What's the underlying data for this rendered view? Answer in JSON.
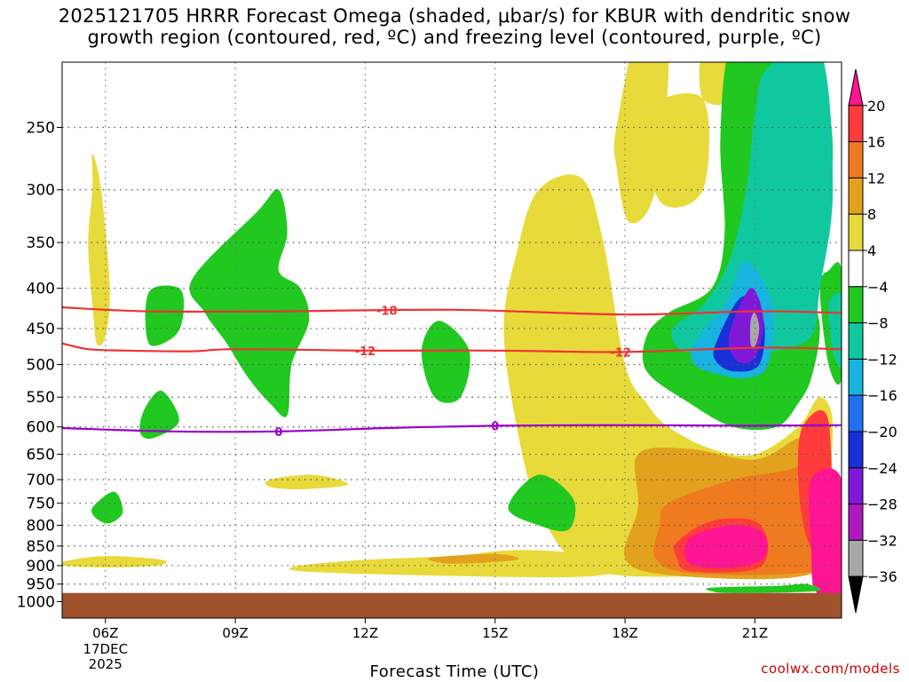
{
  "title": {
    "line1": "2025121705 HRRR Forecast Omega (shaded, μbar/s) for KBUR with dendritic snow",
    "line2": "growth region (contoured, red, ºC) and freezing level (contoured, purple, ºC)"
  },
  "credit": "coolwx.com/models",
  "chart_data": {
    "type": "heatmap",
    "xlabel": "Forecast Time (UTC)",
    "x_ticks": [
      {
        "hour": 6,
        "label": "06Z",
        "sub": [
          "17DEC",
          "2025"
        ]
      },
      {
        "hour": 9,
        "label": "09Z"
      },
      {
        "hour": 12,
        "label": "12Z"
      },
      {
        "hour": 15,
        "label": "15Z"
      },
      {
        "hour": 18,
        "label": "18Z"
      },
      {
        "hour": 21,
        "label": "21Z"
      }
    ],
    "xlim_hours": [
      5,
      23
    ],
    "y_ticks": [
      250,
      300,
      350,
      400,
      450,
      500,
      550,
      600,
      650,
      700,
      750,
      800,
      850,
      900,
      950,
      1000
    ],
    "ylim_hpa": [
      200,
      1000
    ],
    "y_scale": "log-pressure",
    "grid": true,
    "colorbar": {
      "labels": [
        "20",
        "16",
        "12",
        "8",
        "4",
        "−4",
        "−8",
        "−12",
        "−16",
        "−20",
        "−24",
        "−28",
        "−32",
        "−36"
      ],
      "colors": [
        "#ff1493",
        "#ff3b3b",
        "#f07a20",
        "#e3a21e",
        "#e8da3a",
        "#ffffff",
        "#20c820",
        "#10c8a0",
        "#18b4e0",
        "#2070f0",
        "#1830d8",
        "#8018d8",
        "#b018c0",
        "#a8a8a8",
        "#000000"
      ]
    },
    "contours": [
      {
        "label": "-18",
        "color": "#ee3333",
        "points": [
          [
            5,
            423
          ],
          [
            7,
            428
          ],
          [
            10,
            428
          ],
          [
            14,
            426
          ],
          [
            18,
            432
          ],
          [
            21,
            428
          ],
          [
            23,
            430
          ]
        ],
        "label_positions": [
          [
            12.5,
            427
          ]
        ]
      },
      {
        "label": "-12",
        "color": "#ee3333",
        "points": [
          [
            5,
            470
          ],
          [
            5.6,
            478
          ],
          [
            6.5,
            480
          ],
          [
            8,
            481
          ],
          [
            9,
            478
          ],
          [
            12,
            480
          ],
          [
            15,
            480
          ],
          [
            18,
            482
          ],
          [
            21,
            476
          ],
          [
            23,
            478
          ]
        ],
        "label_positions": [
          [
            12,
            480
          ],
          [
            17.9,
            482
          ]
        ]
      },
      {
        "label": "0",
        "color": "#9900cc",
        "points": [
          [
            5,
            602
          ],
          [
            7.5,
            608
          ],
          [
            10,
            608
          ],
          [
            12.5,
            602
          ],
          [
            15,
            598
          ],
          [
            18,
            597
          ],
          [
            21,
            598
          ],
          [
            23,
            597
          ]
        ],
        "label_positions": [
          [
            10,
            608
          ],
          [
            15,
            598
          ]
        ]
      }
    ],
    "ground_level_hpa": 975,
    "ground_color": "#a0522d",
    "shaded_regions": [
      {
        "value": 6,
        "color": "#e8da3a",
        "points": [
          [
            5.7,
            270
          ],
          [
            5.9,
            300
          ],
          [
            6.1,
            400
          ],
          [
            6.0,
            460
          ],
          [
            5.8,
            470
          ],
          [
            5.7,
            420
          ],
          [
            5.6,
            350
          ],
          [
            5.7,
            300
          ]
        ]
      },
      {
        "value": 6,
        "color": "#e8da3a",
        "points": [
          [
            5,
            890
          ],
          [
            6,
            875
          ],
          [
            7.3,
            885
          ],
          [
            7.2,
            900
          ],
          [
            6,
            905
          ],
          [
            5,
            900
          ]
        ]
      },
      {
        "value": 6,
        "color": "#e8da3a",
        "points": [
          [
            9.8,
            700
          ],
          [
            10.8,
            690
          ],
          [
            11.6,
            710
          ],
          [
            10.5,
            720
          ],
          [
            9.8,
            715
          ]
        ]
      },
      {
        "value": 6,
        "color": "#e8da3a",
        "points": [
          [
            10.5,
            900
          ],
          [
            12,
            885
          ],
          [
            14,
            875
          ],
          [
            15.5,
            860
          ],
          [
            17,
            870
          ],
          [
            18,
            900
          ],
          [
            17,
            930
          ],
          [
            13,
            925
          ],
          [
            10.5,
            915
          ]
        ]
      },
      {
        "value": 6,
        "color": "#e8da3a",
        "points": [
          [
            15.5,
            360
          ],
          [
            16,
            300
          ],
          [
            17,
            290
          ],
          [
            17.5,
            350
          ],
          [
            18,
            500
          ],
          [
            18.5,
            560
          ],
          [
            19,
            600
          ],
          [
            20,
            640
          ],
          [
            21,
            650
          ],
          [
            22,
            600
          ],
          [
            22.5,
            550
          ],
          [
            22.8,
            600
          ],
          [
            22.5,
            800
          ],
          [
            21.5,
            900
          ],
          [
            19,
            930
          ],
          [
            17,
            900
          ],
          [
            16,
            760
          ],
          [
            15.5,
            600
          ],
          [
            15.2,
            450
          ]
        ]
      },
      {
        "value": 6,
        "color": "#e8da3a",
        "points": [
          [
            17.8,
            250
          ],
          [
            18.4,
            180
          ],
          [
            19,
            200
          ],
          [
            18.7,
            300
          ],
          [
            18.1,
            330
          ],
          [
            17.8,
            280
          ]
        ]
      },
      {
        "value": 6,
        "color": "#e8da3a",
        "points": [
          [
            18.5,
            240
          ],
          [
            19.8,
            230
          ],
          [
            19.8,
            300
          ],
          [
            18.8,
            310
          ]
        ]
      },
      {
        "value": 6,
        "color": "#e8da3a",
        "points": [
          [
            19.8,
            200
          ],
          [
            20.5,
            200
          ],
          [
            20.5,
            230
          ],
          [
            19.8,
            230
          ]
        ]
      },
      {
        "value": 10,
        "color": "#e3a21e",
        "points": [
          [
            13.5,
            880
          ],
          [
            15,
            870
          ],
          [
            15.5,
            885
          ],
          [
            14,
            895
          ]
        ]
      },
      {
        "value": 10,
        "color": "#e3a21e",
        "points": [
          [
            18.3,
            650
          ],
          [
            19.5,
            640
          ],
          [
            21,
            660
          ],
          [
            22,
            620
          ],
          [
            22.7,
            610
          ],
          [
            22.7,
            850
          ],
          [
            22,
            930
          ],
          [
            19,
            925
          ],
          [
            18,
            880
          ],
          [
            18.3,
            760
          ]
        ]
      },
      {
        "value": 14,
        "color": "#f07a20",
        "points": [
          [
            19,
            750
          ],
          [
            20.5,
            700
          ],
          [
            21.8,
            680
          ],
          [
            22.7,
            650
          ],
          [
            22.7,
            880
          ],
          [
            22,
            920
          ],
          [
            19.5,
            920
          ],
          [
            18.7,
            880
          ],
          [
            18.8,
            800
          ]
        ]
      },
      {
        "value": 18,
        "color": "#ff3b3b",
        "points": [
          [
            22.1,
            600
          ],
          [
            22.7,
            590
          ],
          [
            22.7,
            900
          ],
          [
            22.2,
            830
          ],
          [
            22.0,
            700
          ]
        ]
      },
      {
        "value": 18,
        "color": "#ff3b3b",
        "points": [
          [
            19.2,
            840
          ],
          [
            20,
            790
          ],
          [
            21,
            790
          ],
          [
            21.3,
            850
          ],
          [
            21,
            910
          ],
          [
            19.5,
            915
          ],
          [
            19.2,
            880
          ]
        ]
      },
      {
        "value": 22,
        "color": "#ff1493",
        "points": [
          [
            19.5,
            830
          ],
          [
            20.5,
            800
          ],
          [
            21.2,
            820
          ],
          [
            21.2,
            880
          ],
          [
            20.5,
            905
          ],
          [
            19.5,
            895
          ]
        ]
      },
      {
        "value": 22,
        "color": "#ff1493",
        "points": [
          [
            22.3,
            700
          ],
          [
            23,
            700
          ],
          [
            23,
            970
          ],
          [
            22.4,
            970
          ],
          [
            22.3,
            850
          ]
        ]
      },
      {
        "value": -6,
        "color": "#20c820",
        "points": [
          [
            8,
            390
          ],
          [
            9.5,
            320
          ],
          [
            10,
            300
          ],
          [
            10.2,
            340
          ],
          [
            10,
            380
          ],
          [
            10.5,
            400
          ],
          [
            10.7,
            440
          ],
          [
            10.3,
            500
          ],
          [
            10.2,
            580
          ],
          [
            9.8,
            560
          ],
          [
            9.3,
            520
          ],
          [
            8.8,
            470
          ],
          [
            8.3,
            430
          ]
        ]
      },
      {
        "value": -6,
        "color": "#20c820",
        "points": [
          [
            7,
            405
          ],
          [
            7.7,
            400
          ],
          [
            7.8,
            430
          ],
          [
            7.6,
            460
          ],
          [
            7,
            470
          ]
        ]
      },
      {
        "value": -6,
        "color": "#20c820",
        "points": [
          [
            6.9,
            570
          ],
          [
            7.3,
            540
          ],
          [
            7.7,
            590
          ],
          [
            7.1,
            620
          ],
          [
            6.8,
            610
          ]
        ]
      },
      {
        "value": -6,
        "color": "#20c820",
        "points": [
          [
            5.7,
            760
          ],
          [
            6.2,
            725
          ],
          [
            6.4,
            770
          ],
          [
            6.1,
            795
          ],
          [
            5.8,
            785
          ]
        ]
      },
      {
        "value": -6,
        "color": "#20c820",
        "points": [
          [
            13.3,
            480
          ],
          [
            13.7,
            440
          ],
          [
            14.4,
            480
          ],
          [
            14.2,
            550
          ],
          [
            13.6,
            550
          ]
        ]
      },
      {
        "value": -6,
        "color": "#20c820",
        "points": [
          [
            15.3,
            760
          ],
          [
            16,
            690
          ],
          [
            16.8,
            740
          ],
          [
            16.7,
            810
          ],
          [
            16,
            800
          ]
        ]
      },
      {
        "value": -6,
        "color": "#20c820",
        "points": [
          [
            20.4,
            200
          ],
          [
            21,
            205
          ],
          [
            22.3,
            200
          ],
          [
            22.8,
            270
          ],
          [
            22.3,
            380
          ],
          [
            22.5,
            450
          ],
          [
            22.3,
            520
          ],
          [
            22,
            560
          ],
          [
            21.5,
            600
          ],
          [
            20.5,
            600
          ],
          [
            19.5,
            560
          ],
          [
            18.5,
            510
          ],
          [
            18.5,
            460
          ],
          [
            19,
            430
          ],
          [
            20,
            400
          ],
          [
            20.3,
            340
          ],
          [
            20.2,
            260
          ]
        ]
      },
      {
        "value": -6,
        "color": "#20c820",
        "points": [
          [
            22.5,
            400
          ],
          [
            22.7,
            380
          ],
          [
            23,
            380
          ],
          [
            23,
            520
          ],
          [
            22.7,
            500
          ]
        ]
      },
      {
        "value": -6,
        "color": "#20c820",
        "points": [
          [
            20,
            960
          ],
          [
            21.5,
            955
          ],
          [
            22.2,
            950
          ],
          [
            22.4,
            970
          ],
          [
            20.5,
            975
          ],
          [
            20,
            970
          ]
        ]
      },
      {
        "value": -10,
        "color": "#10c8a0",
        "points": [
          [
            21.3,
            210
          ],
          [
            22.5,
            200
          ],
          [
            22.8,
            300
          ],
          [
            22.5,
            400
          ],
          [
            22.3,
            460
          ],
          [
            21.5,
            480
          ],
          [
            20.8,
            480
          ],
          [
            20,
            480
          ],
          [
            19.3,
            480
          ],
          [
            19.1,
            450
          ],
          [
            19.8,
            420
          ],
          [
            20.4,
            370
          ],
          [
            20.8,
            300
          ],
          [
            21,
            240
          ]
        ]
      },
      {
        "value": -10,
        "color": "#10c8a0",
        "points": [
          [
            22.7,
            420
          ],
          [
            23,
            410
          ],
          [
            23,
            500
          ],
          [
            22.8,
            480
          ]
        ]
      },
      {
        "value": -14,
        "color": "#18b4e0",
        "points": [
          [
            19.6,
            470
          ],
          [
            20.3,
            420
          ],
          [
            20.8,
            370
          ],
          [
            21.4,
            420
          ],
          [
            21.3,
            500
          ],
          [
            20.8,
            520
          ],
          [
            20.2,
            515
          ],
          [
            19.6,
            500
          ]
        ]
      },
      {
        "value": -22,
        "color": "#1830d8",
        "points": [
          [
            20.1,
            470
          ],
          [
            20.7,
            410
          ],
          [
            21.2,
            440
          ],
          [
            21.1,
            500
          ],
          [
            20.5,
            510
          ],
          [
            20.1,
            495
          ]
        ]
      },
      {
        "value": -26,
        "color": "#8018d8",
        "points": [
          [
            20.4,
            460
          ],
          [
            20.9,
            400
          ],
          [
            21.2,
            440
          ],
          [
            21,
            490
          ],
          [
            20.6,
            495
          ]
        ]
      },
      {
        "value": -34,
        "color": "#a8a8a8",
        "points": [
          [
            20.9,
            440
          ],
          [
            21,
            430
          ],
          [
            21.1,
            450
          ],
          [
            21,
            475
          ],
          [
            20.9,
            470
          ]
        ]
      }
    ]
  }
}
